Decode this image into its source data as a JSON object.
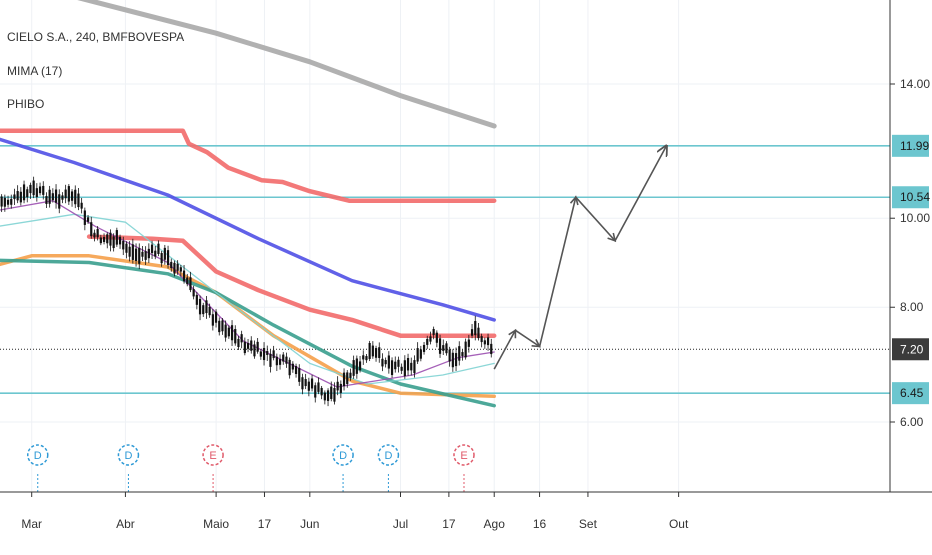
{
  "header": {
    "symbol_line": "CIELO S.A., 240, BMFBOVESPA",
    "indicators": [
      "MIMA (17)",
      "PHIBO"
    ]
  },
  "colors": {
    "grid": "#eef1f5",
    "axis_text": "#333333",
    "candle": "#111111",
    "blue_ma": "#5050e6",
    "red_band": "#f26a6a",
    "orange_ma": "#f5a04a",
    "teal_ma": "#3a9e8e",
    "cyan_ma": "#7fd3d3",
    "purple_ma": "#9b4fb0",
    "gray_ma": "#a8a8a8",
    "hline": "#6cc6cf",
    "price_box": "#6cc6cf",
    "current_box": "#3b3b3b",
    "arrow": "#555555",
    "dividend_marker": "#2f9ad6",
    "earnings_marker": "#e05a6a"
  },
  "chart_data": {
    "type": "candlestick",
    "scale": "log",
    "x_axis": {
      "labels": [
        "Mar",
        "Abr",
        "Maio",
        "17",
        "Jun",
        "Jul",
        "17",
        "Ago",
        "16",
        "Set",
        "Out"
      ],
      "dates": [
        "2019-03-01",
        "2019-04-01",
        "2019-05-01",
        "2019-05-17",
        "2019-06-01",
        "2019-07-01",
        "2019-07-17",
        "2019-08-01",
        "2019-08-16",
        "2019-09-01",
        "2019-10-01"
      ]
    },
    "y_axis": {
      "tick_labels": [
        "14.00",
        "10.00",
        "8.00",
        "6.00"
      ],
      "ticks": [
        14.0,
        10.0,
        8.0,
        6.0
      ],
      "range": [
        5.0,
        17.5
      ]
    },
    "horizontal_levels": [
      {
        "label": "11.99",
        "value": 11.99
      },
      {
        "label": "10.54",
        "value": 10.54
      },
      {
        "label": "6.45",
        "value": 6.45
      }
    ],
    "current_price": {
      "label": "7.20",
      "value": 7.2
    },
    "close_series": {
      "dates": [
        "2019-02-18",
        "2019-02-25",
        "2019-03-01",
        "2019-03-08",
        "2019-03-15",
        "2019-03-22",
        "2019-03-29",
        "2019-04-05",
        "2019-04-12",
        "2019-04-19",
        "2019-04-26",
        "2019-05-03",
        "2019-05-10",
        "2019-05-17",
        "2019-05-24",
        "2019-05-31",
        "2019-06-07",
        "2019-06-14",
        "2019-06-21",
        "2019-06-28",
        "2019-07-05",
        "2019-07-12",
        "2019-07-19",
        "2019-07-26",
        "2019-08-01"
      ],
      "values": [
        10.4,
        10.5,
        10.75,
        10.5,
        10.6,
        9.55,
        9.45,
        9.1,
        9.2,
        8.8,
        8.05,
        7.65,
        7.3,
        7.1,
        6.95,
        6.6,
        6.4,
        6.7,
        7.15,
        6.95,
        6.9,
        7.45,
        7.0,
        7.55,
        7.15
      ]
    },
    "series": [
      {
        "name": "",
        "color_key": "gray_ma",
        "dates": [
          "2019-03-10",
          "2019-05-01",
          "2019-06-01",
          "2019-07-01",
          "2019-08-01"
        ],
        "values": [
          17.6,
          15.9,
          14.8,
          13.6,
          12.6
        ]
      },
      {
        "name": "",
        "color_key": "red_band",
        "dates": [
          "2019-02-18",
          "2019-04-20",
          "2019-04-22",
          "2019-04-28",
          "2019-05-05",
          "2019-05-16",
          "2019-05-23",
          "2019-06-01",
          "2019-06-14",
          "2019-08-01"
        ],
        "values": [
          12.45,
          12.45,
          12.05,
          11.8,
          11.35,
          11.0,
          10.95,
          10.7,
          10.45,
          10.45
        ]
      },
      {
        "name": "",
        "color_key": "red_band",
        "dates": [
          "2019-03-20",
          "2019-04-10",
          "2019-04-20",
          "2019-05-01",
          "2019-05-15",
          "2019-06-01",
          "2019-06-15",
          "2019-07-01",
          "2019-07-10",
          "2019-08-01"
        ],
        "values": [
          9.55,
          9.5,
          9.45,
          8.75,
          8.35,
          7.95,
          7.75,
          7.45,
          7.45,
          7.45
        ]
      },
      {
        "name": "",
        "color_key": "blue_ma",
        "dates": [
          "2019-02-18",
          "2019-03-15",
          "2019-04-15",
          "2019-05-15",
          "2019-06-15",
          "2019-07-15",
          "2019-08-01"
        ],
        "values": [
          12.2,
          11.5,
          10.6,
          9.5,
          8.55,
          8.05,
          7.75
        ]
      },
      {
        "name": "",
        "color_key": "orange_ma",
        "dates": [
          "2019-02-18",
          "2019-03-01",
          "2019-03-20",
          "2019-04-15",
          "2019-05-01",
          "2019-05-20",
          "2019-06-15",
          "2019-07-01",
          "2019-08-01"
        ],
        "values": [
          8.9,
          9.1,
          9.1,
          8.85,
          8.3,
          7.45,
          6.65,
          6.45,
          6.4
        ]
      },
      {
        "name": "",
        "color_key": "teal_ma",
        "dates": [
          "2019-02-18",
          "2019-03-20",
          "2019-04-15",
          "2019-05-01",
          "2019-05-20",
          "2019-06-15",
          "2019-07-01",
          "2019-08-01"
        ],
        "values": [
          9.0,
          8.95,
          8.7,
          8.3,
          7.65,
          6.9,
          6.6,
          6.25
        ]
      },
      {
        "name": "",
        "color_key": "cyan_ma",
        "dates": [
          "2019-02-18",
          "2019-03-15",
          "2019-04-01",
          "2019-05-01",
          "2019-06-01",
          "2019-06-20",
          "2019-07-15",
          "2019-08-01"
        ],
        "values": [
          9.8,
          10.1,
          9.9,
          8.3,
          6.95,
          6.6,
          6.75,
          6.95
        ]
      },
      {
        "name": "",
        "color_key": "purple_ma",
        "dates": [
          "2019-02-18",
          "2019-03-08",
          "2019-03-22",
          "2019-04-15",
          "2019-05-10",
          "2019-06-10",
          "2019-07-05",
          "2019-07-20",
          "2019-08-01"
        ],
        "values": [
          10.2,
          10.45,
          9.8,
          8.95,
          7.35,
          6.55,
          6.75,
          7.05,
          7.15
        ]
      }
    ],
    "projection": {
      "dates": [
        "2019-08-01",
        "2019-08-08",
        "2019-08-16",
        "2019-08-28",
        "2019-09-10",
        "2019-09-27"
      ],
      "values": [
        6.85,
        7.55,
        7.25,
        10.54,
        9.45,
        11.99
      ]
    },
    "events": [
      {
        "label": "D",
        "date": "2019-03-03",
        "kind": "dividend_marker"
      },
      {
        "label": "D",
        "date": "2019-04-02",
        "kind": "dividend_marker"
      },
      {
        "label": "E",
        "date": "2019-04-30",
        "kind": "earnings_marker"
      },
      {
        "label": "D",
        "date": "2019-06-12",
        "kind": "dividend_marker"
      },
      {
        "label": "D",
        "date": "2019-06-27",
        "kind": "dividend_marker"
      },
      {
        "label": "E",
        "date": "2019-07-22",
        "kind": "earnings_marker"
      }
    ]
  }
}
